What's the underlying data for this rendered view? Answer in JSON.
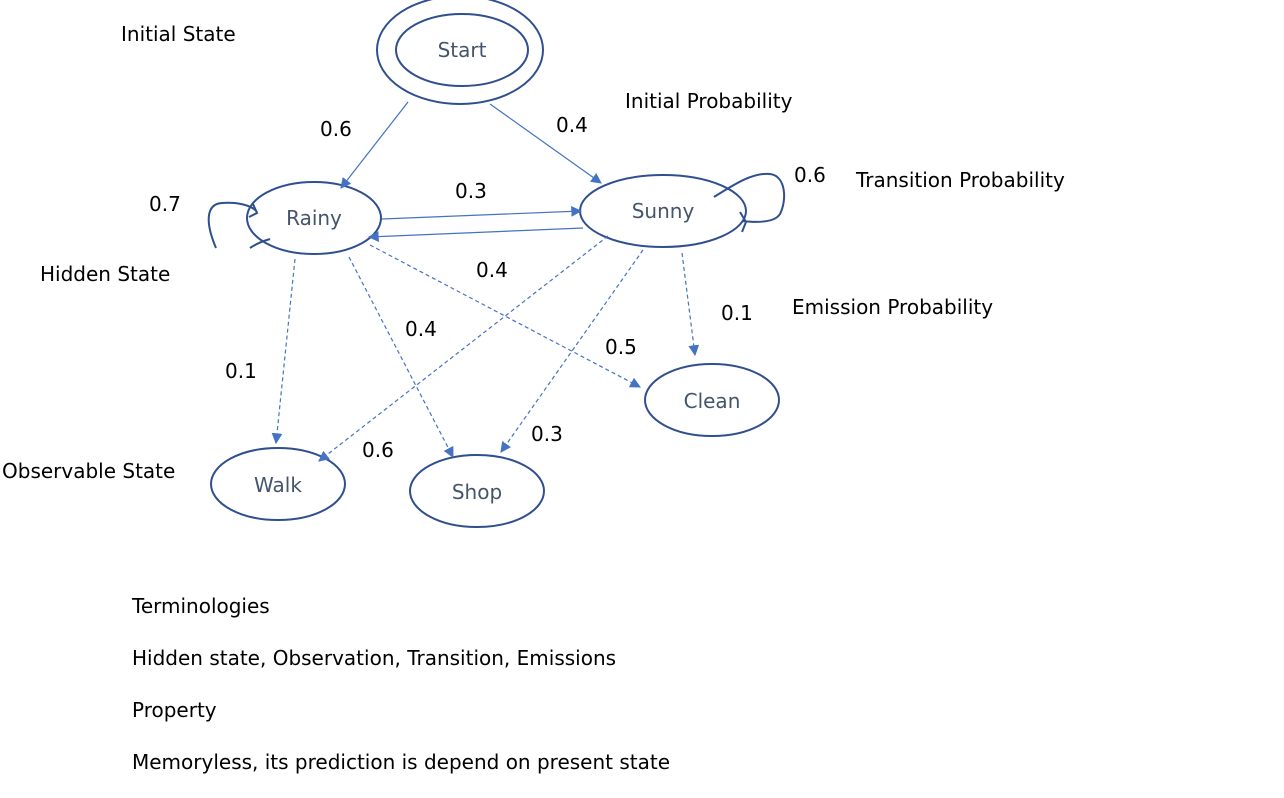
{
  "annotations": {
    "initial_state": "Initial State",
    "initial_probability": "Initial Probability",
    "transition_probability": "Transition Probability",
    "hidden_state": "Hidden State",
    "emission_probability": "Emission Probability",
    "observable_state": "Observable State"
  },
  "nodes": {
    "start": "Start",
    "rainy": "Rainy",
    "sunny": "Sunny",
    "walk": "Walk",
    "shop": "Shop",
    "clean": "Clean"
  },
  "probabilities": {
    "start_rainy": "0.6",
    "start_sunny": "0.4",
    "rainy_rainy": "0.7",
    "sunny_sunny": "0.6",
    "rainy_sunny": "0.3",
    "sunny_rainy": "0.4",
    "rainy_walk": "0.1",
    "rainy_shop": "0.4",
    "rainy_clean": "0.5",
    "sunny_walk": "0.6",
    "sunny_shop": "0.3",
    "sunny_clean": "0.1"
  },
  "notes": {
    "terminologies_heading": "Terminologies",
    "terminologies_list": "Hidden state, Observation, Transition, Emissions",
    "property_heading": "Property",
    "property_text": "Memoryless, its prediction is depend on present state"
  },
  "colors": {
    "node_stroke": "#2f4f8f",
    "arrow": "#4472c4",
    "node_text": "#44546a"
  }
}
